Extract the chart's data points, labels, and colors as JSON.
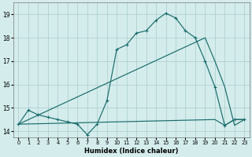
{
  "xlabel": "Humidex (Indice chaleur)",
  "bg_color": "#d4ecec",
  "grid_color": "#aacccc",
  "line_color": "#1a6b6b",
  "xlim": [
    -0.5,
    23.5
  ],
  "ylim": [
    13.75,
    19.5
  ],
  "yticks": [
    14,
    15,
    16,
    17,
    18,
    19
  ],
  "xticks": [
    0,
    1,
    2,
    3,
    4,
    5,
    6,
    7,
    8,
    9,
    10,
    11,
    12,
    13,
    14,
    15,
    16,
    17,
    18,
    19,
    20,
    21,
    22,
    23
  ],
  "curve_x": [
    0,
    1,
    2,
    3,
    4,
    5,
    6,
    7,
    8,
    9,
    10,
    11,
    12,
    13,
    14,
    15,
    16,
    17,
    18,
    19,
    20,
    21,
    22,
    23
  ],
  "curve_y": [
    14.3,
    14.9,
    14.7,
    14.6,
    14.5,
    14.4,
    14.3,
    13.85,
    14.3,
    15.3,
    17.5,
    17.7,
    18.2,
    18.3,
    18.75,
    19.05,
    18.85,
    18.3,
    18.0,
    17.0,
    15.9,
    14.25,
    14.5,
    14.5
  ],
  "diag_x": [
    0,
    19,
    20,
    21,
    22,
    23
  ],
  "diag_y": [
    14.3,
    18.0,
    17.0,
    15.9,
    14.25,
    14.5
  ],
  "flat_x": [
    0,
    20,
    21,
    22,
    23
  ],
  "flat_y": [
    14.3,
    14.5,
    14.25,
    14.5,
    14.5
  ]
}
